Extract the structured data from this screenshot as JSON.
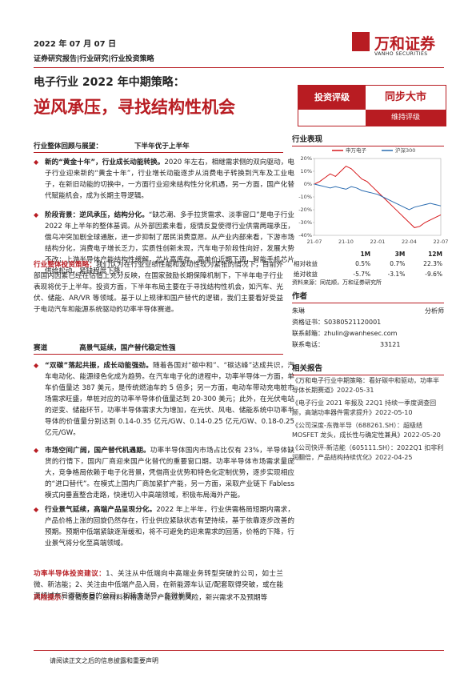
{
  "header": {
    "date": "2022 年 07 月 07 日",
    "tags": "证券研究报告|行业研究|行业投资策略",
    "logo": "万和证券",
    "logo_en": "VANHO SECURITIES"
  },
  "title": {
    "line1": "电子行业 2022 年中期策略：",
    "line2": "逆风承压，寻找结构性机会"
  },
  "rating": {
    "label": "投资评级",
    "value": "同步大市",
    "note": "维持评级"
  },
  "body": [
    {
      "kind": "sub",
      "lead": "行业整体回顾与展望：",
      "text": "下半年优于上半年"
    },
    {
      "kind": "bullet",
      "lead": "新的“黄金十年”，行业成长动能转换。",
      "text": "2020 年左右，相继需求侧的双向驱动，电子行业迎来新的“黄金十年”，行业增长动能逐步从消费电子转换到汽车及工业电子，在新旧动能的切换中，一方面行业迎来结构性分化机遇，另一方面，国产化替代赋能机会，成为长期主导逻辑。"
    },
    {
      "kind": "bullet",
      "lead": "阶段背景：逆风承压，结构分化。",
      "text": "“缺芯潮、多手拉货需求、淡季窗口”是电子行业 2022 年上半年的整体基调。从外部因素来看，疫情反复使得行业供需两端承压，俄乌冲突加剧全球通胀，进一步抑制了居民消费意愿。从产业内部来看，下游市场结构分化，消费电子增长乏力，实质性创新未现，汽车电子阶段性向好，发展大势不改；上游半导体产能结构性缓解，芯片高库存、高单价近期下调，智能手机芯片供给松动，紧缺程度下降。"
    },
    {
      "kind": "plain",
      "lead": "行业整体投资策略：",
      "text": "我们认为在行业业绩性能和波动性较为紧张的情况下，目前外部国内因素已经在估值上充分反映，在国家鼓励长期保障机制下，下半年电子行业表现将优于上半年。投资方面，下半年布局主要在于寻找结构性机会，如汽车、光伏、储能、AR/VR 等领域。基于以上规律和国产替代的逻辑，我们主要看好受益于电动汽车和能源系统驱动的功率半导体赛道。"
    },
    {
      "kind": "sub",
      "lead": "赛道",
      "text": "高景气延续，国产替代稳定性强"
    },
    {
      "kind": "bullet",
      "lead": "“双碳”落起共振，成长动能强劲。",
      "text": "随着各国对“碳中和”、“碳达峰”达成共识，汽车电动化、能源绿色化成为趋势。在汽车电子化的进程中，功率半导体一方面，单车价值量达 387 美元，是传统燃油车的 5 倍多；另一方面，电动车带动充电桩市场需求旺盛，单桩对应的功率半导体价值量达到 20-300 美元；此外，在光伏电站的逆变、储能环节，功率半导体需求大为增加，在光伏、风电、储能系统中功率半导体的价值量分别达到 0.14-0.35 亿元/GW、0.14-0.25 亿元/GW、0.18-0.25 亿元/GW。"
    },
    {
      "kind": "bullet",
      "lead": "市场空间广阔，国产替代机遇期。",
      "text": "功率半导体国内市场占比仅有 23%，半导体缺货的行情下，国内厂商迎来国产化替代的重要窗口期。功率半导体市场需求量庞大，竞争格局依赖于电子化背景，凭借商业优势和特色化定制优势，逐步实现相应的“进口替代”。在模式上国内厂商加紧扩产能，另一方面，采取产业链下 Fabless 模式向垂直整合走路，快速切入中高端领域，积极布局海外产能。"
    },
    {
      "kind": "bullet",
      "lead": "行业景气延续，高端产品呈现分化。",
      "text": "2022 年上半年，行业供需格局短期内需求，产品价格上涨的回旋仍然存在，行业供应紧缺状态有望持续，基于依靠逐步改善的预期。预期中低端紧缺逐渐缓和，将不可避免的迎来需求的回落，价格的下降，行业景气将分化至高端领域。"
    },
    {
      "kind": "plain",
      "lead": "功率半导体投资建议：",
      "text": "1、关注从中低端向中高端业务转型突破的公司，如士兰微、新洁能；2、关注由中低端产品入局，在新能源车认证/配套取得突破，或在能源领域布局得到布局的公司，如扬杰半导、东微半导。"
    },
    {
      "kind": "plain",
      "lead": "风险提示：",
      "text": "疫情反复，原材料价格波动，产能过剩风险，新兴需求不及预期等"
    }
  ],
  "performance": {
    "title": "行业表现",
    "chart_data": {
      "type": "line",
      "categories": [
        "21-07",
        null,
        null,
        null,
        null,
        null,
        "21-10",
        null,
        null,
        null,
        null,
        null,
        "22-01",
        null,
        null,
        null,
        null,
        null,
        "22-04",
        null,
        null,
        null,
        null,
        null,
        "22-07"
      ],
      "series": [
        {
          "name": "申万电子",
          "color": "#d7191c",
          "values": [
            0,
            2,
            5,
            8,
            6,
            10,
            14,
            12,
            8,
            4,
            2,
            -2,
            -6,
            -10,
            -14,
            -18,
            -22,
            -26,
            -30,
            -34,
            -33,
            -30,
            -28,
            -26,
            -24
          ]
        },
        {
          "name": "沪深300",
          "color": "#2b6cb0",
          "values": [
            0,
            -1,
            -2,
            -3,
            -2,
            -3,
            -4,
            -2,
            -3,
            -5,
            -6,
            -7,
            -8,
            -10,
            -12,
            -14,
            -16,
            -18,
            -20,
            -18,
            -17,
            -16,
            -15,
            -16,
            -17
          ]
        }
      ],
      "ylim": [
        -40,
        20
      ],
      "yticks": [
        {
          "value": 20,
          "label": "20%"
        },
        {
          "value": 10,
          "label": "10%"
        },
        {
          "value": 0,
          "label": "0%"
        },
        {
          "value": -10,
          "label": "-10%"
        },
        {
          "value": -20,
          "label": "-20%"
        },
        {
          "value": -30,
          "label": "-30%"
        },
        {
          "value": -40,
          "label": "-40%"
        }
      ]
    },
    "table": {
      "headers": [
        "1M",
        "3M",
        "12M"
      ],
      "rows": [
        [
          "相对收益",
          "0.5%",
          "0.7%",
          "22.3%"
        ],
        [
          "绝对收益",
          "-5.7%",
          "-3.1%",
          "-9.6%"
        ]
      ]
    },
    "source": "资料来源：同花顺，万和证券研究所"
  },
  "author": {
    "title": "作者",
    "name": "朱琳",
    "role": "分析师",
    "cert": "资格证书：S0380521120001",
    "email": "联系邮箱：zhulin@wanhesec.com",
    "phone_label": "联系电话：",
    "phone": "33121"
  },
  "related": {
    "title": "相关报告",
    "items": [
      "《万和电子行业中期策略：看好碳中和驱动，功率半导体长期赛道》2022-05-31",
      "《电子行业 2021 年报及 22Q1 持续一季度调查回顾，高端功率器件需求提升》2022-05-10",
      "《公司深度-东微半导（688261.SH）：超级结 MOSFET 龙头，成长性与确定性兼具》2022-05-20",
      "《公司快评-新洁能（605111.SH）：2022Q1 扣非利润翻倍，产品结构持续优化》2022-04-25"
    ]
  },
  "footer": "请阅读正文之后的信息披露和重要声明"
}
